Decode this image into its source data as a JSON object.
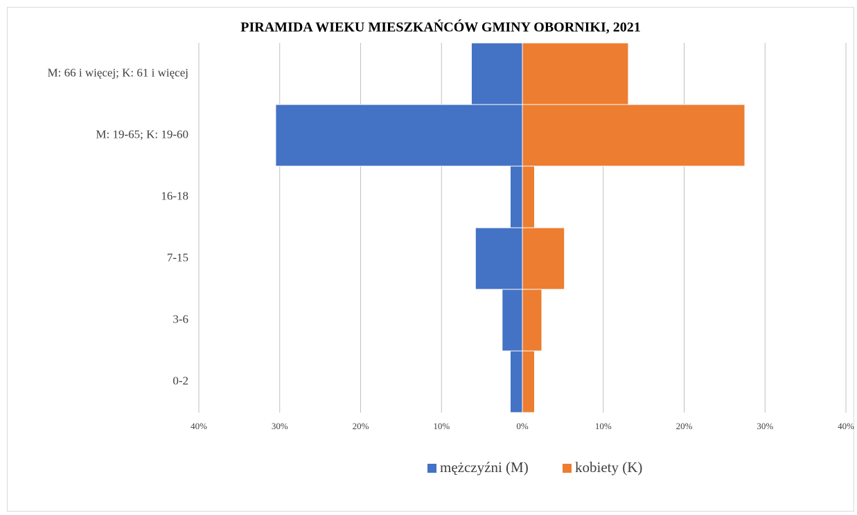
{
  "chart_data": {
    "type": "pyramid",
    "title": "PIRAMIDA WIEKU MIESZKAŃCÓW GMINY OBORNIKI, 2021",
    "categories": [
      "0-2",
      "3-6",
      "7-15",
      "16-18",
      "M: 19-65; K: 19-60",
      "M: 66 i więcej; K: 61 i więcej"
    ],
    "series": [
      {
        "name": "mężczyźni (M)",
        "color": "#4472c4",
        "values": [
          -1.5,
          -2.5,
          -5.8,
          -1.5,
          -30.5,
          -6.3
        ]
      },
      {
        "name": "kobiety (K)",
        "color": "#ed7d31",
        "values": [
          1.5,
          2.4,
          5.2,
          1.5,
          27.5,
          13.1
        ]
      }
    ],
    "xlim": [
      -40,
      40
    ],
    "xticks": [
      {
        "value": -40,
        "label": "40%"
      },
      {
        "value": -30,
        "label": "30%"
      },
      {
        "value": -20,
        "label": "20%"
      },
      {
        "value": -10,
        "label": "10%"
      },
      {
        "value": 0,
        "label": "0%"
      },
      {
        "value": 10,
        "label": "10%"
      },
      {
        "value": 20,
        "label": "20%"
      },
      {
        "value": 30,
        "label": "30%"
      },
      {
        "value": 40,
        "label": "40%"
      }
    ],
    "grid": true,
    "legend": "bottom"
  }
}
